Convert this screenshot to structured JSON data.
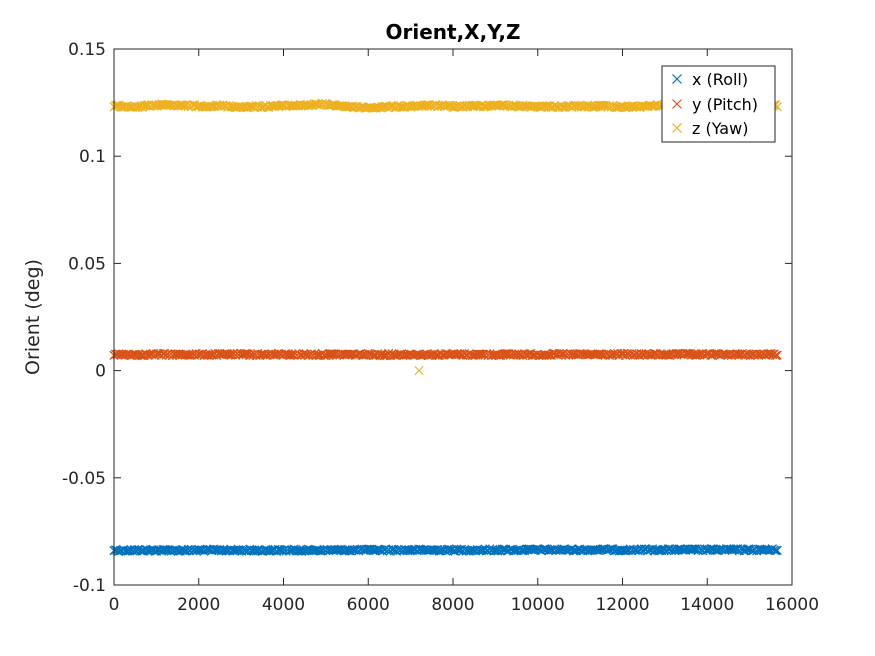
{
  "chart_data": {
    "type": "scatter",
    "title": "Orient,X,Y,Z",
    "xlabel": "",
    "ylabel": "Orient (deg)",
    "xlim": [
      0,
      16000
    ],
    "ylim": [
      -0.1,
      0.15
    ],
    "xticks": [
      0,
      2000,
      4000,
      6000,
      8000,
      10000,
      12000,
      14000,
      16000
    ],
    "xtick_labels": [
      "0",
      "2000",
      "4000",
      "6000",
      "8000",
      "10000",
      "12000",
      "14000",
      "16000"
    ],
    "yticks": [
      -0.1,
      -0.05,
      0,
      0.05,
      0.1,
      0.15
    ],
    "ytick_labels": [
      "-0.1",
      "-0.05",
      "0",
      "0.05",
      "0.1",
      "0.15"
    ],
    "grid": false,
    "legend_position": "top-right",
    "marker": "x",
    "x_range_of_samples": [
      0,
      15650
    ],
    "series": [
      {
        "name": "x (Roll)",
        "color": "#0072BD",
        "profile_x": [
          0,
          2000,
          4000,
          6000,
          8000,
          10000,
          12000,
          14000,
          15650
        ],
        "profile_y": [
          -0.0838,
          -0.0838,
          -0.0838,
          -0.0837,
          -0.0837,
          -0.0836,
          -0.0836,
          -0.0836,
          -0.0836
        ]
      },
      {
        "name": "y (Pitch)",
        "color": "#D95319",
        "profile_x": [
          0,
          2000,
          4000,
          6000,
          8000,
          10000,
          12000,
          14000,
          15650
        ],
        "profile_y": [
          0.0075,
          0.0075,
          0.0075,
          0.0075,
          0.0075,
          0.0075,
          0.0075,
          0.0075,
          0.0075
        ]
      },
      {
        "name": "z (Yaw)",
        "color": "#EDB120",
        "profile_x": [
          0,
          500,
          1000,
          1500,
          2000,
          2500,
          3000,
          3500,
          4000,
          4500,
          5000,
          5500,
          6000,
          6500,
          7000,
          7500,
          8000,
          8500,
          9000,
          9500,
          10000,
          10500,
          11000,
          11500,
          12000,
          12500,
          13000,
          13500,
          14000,
          14500,
          15000,
          15650
        ],
        "profile_y": [
          0.1235,
          0.123,
          0.1238,
          0.1236,
          0.1234,
          0.1235,
          0.123,
          0.1232,
          0.1235,
          0.1238,
          0.1242,
          0.1232,
          0.1226,
          0.123,
          0.1234,
          0.1236,
          0.1232,
          0.1234,
          0.1238,
          0.1234,
          0.1232,
          0.1232,
          0.1233,
          0.1233,
          0.123,
          0.1232,
          0.1238,
          0.1234,
          0.1235,
          0.1236,
          0.1232,
          0.1235
        ],
        "outliers": [
          {
            "x": 7200,
            "y": 0.0
          }
        ]
      }
    ]
  }
}
